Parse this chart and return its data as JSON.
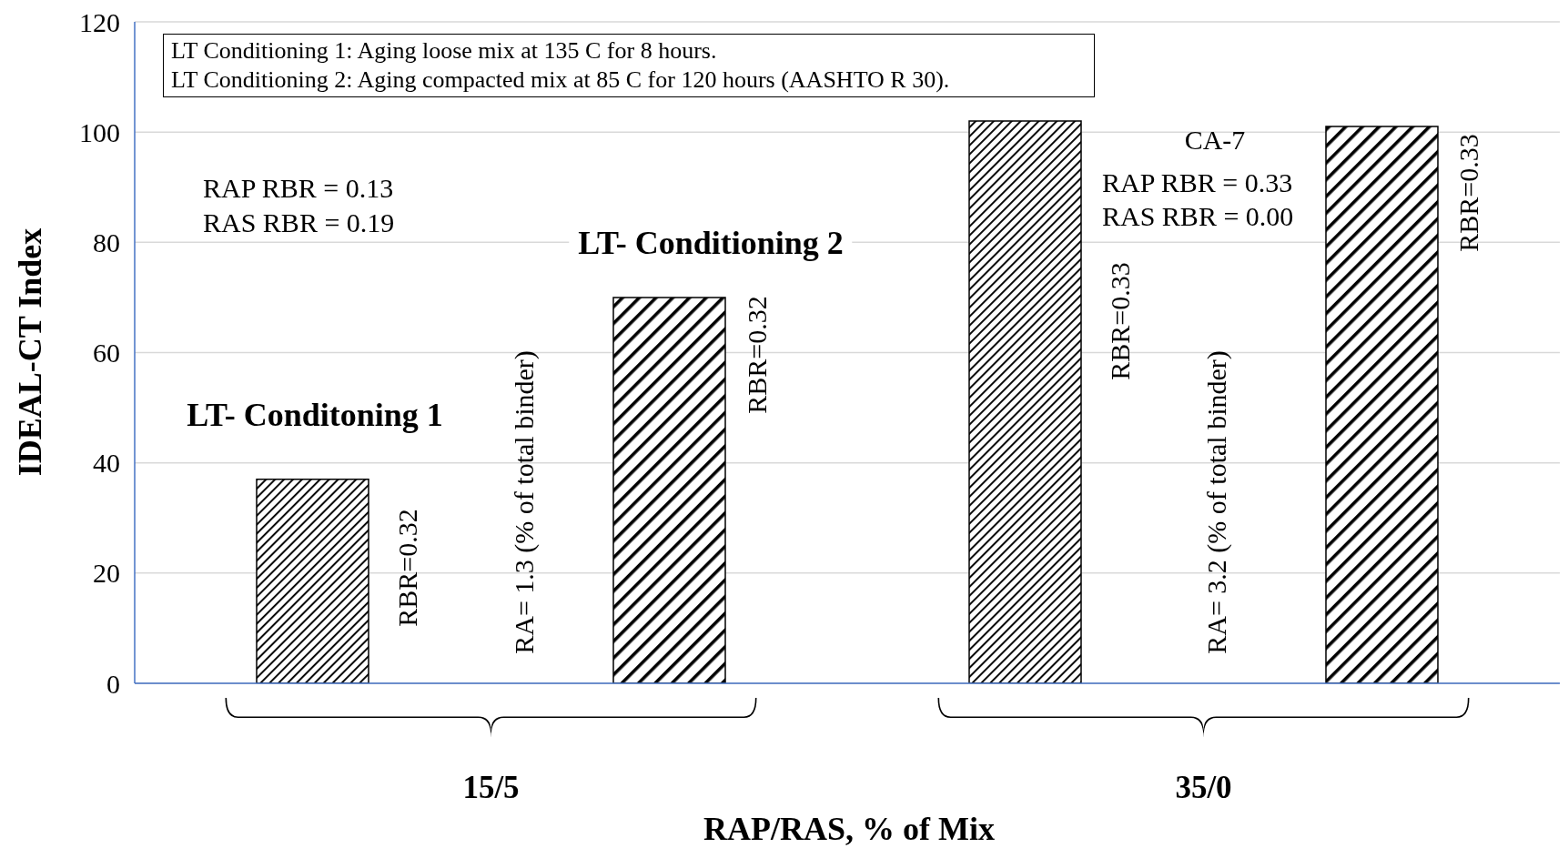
{
  "chart_data": {
    "type": "bar",
    "xlabel": "RAP/RAS, % of Mix",
    "ylabel": "IDEAL-CT Index",
    "categories": [
      "15/5",
      "35/0"
    ],
    "series": [
      {
        "name": "LT- Conditoning 1",
        "color": "#000000",
        "values": [
          37,
          102
        ]
      },
      {
        "name": "LT- Conditioning 2",
        "color": "#000000",
        "values": [
          70,
          101
        ]
      }
    ],
    "ylim": [
      0,
      120
    ],
    "yticks": [
      0,
      20,
      40,
      60,
      80,
      100,
      120
    ],
    "grid": "y",
    "annotations": [
      "LT Conditioning 1: Aging loose mix at 135  C for 8 hours.",
      "LT Conditioning 2: Aging compacted mix at 85  C for 120 hours (AASHTO R 30).",
      "RAP RBR = 0.13",
      "RAS RBR = 0.19",
      "RA= 1.3 (% of total binder)",
      "CA-7",
      "RAP RBR = 0.33",
      "RAS RBR = 0.00",
      "RA= 3.2 (% of total binder)",
      "RBR=0.32",
      "RBR=0.32",
      "RBR=0.33",
      "RBR=0.33"
    ]
  }
}
